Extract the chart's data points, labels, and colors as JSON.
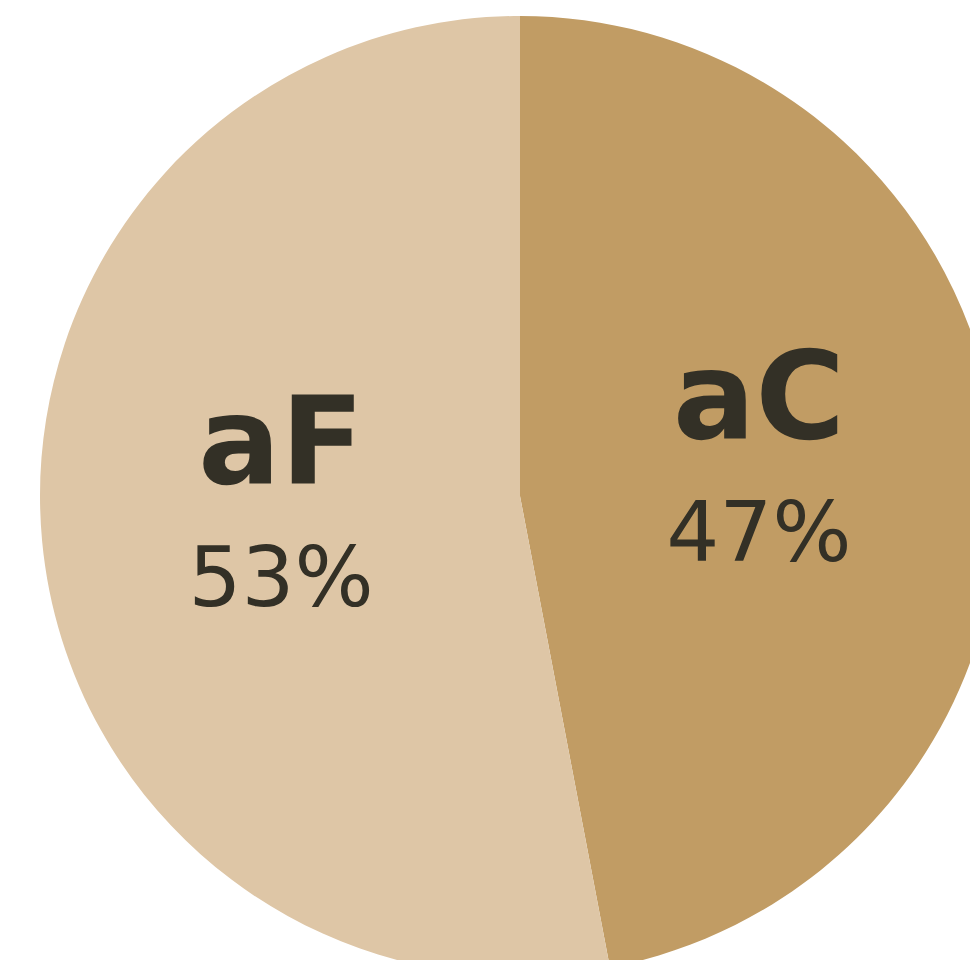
{
  "chart_data": {
    "type": "pie",
    "categories": [
      "aC",
      "aF"
    ],
    "values": [
      47,
      53
    ],
    "colors": [
      "#c19c64",
      "#dec6a6"
    ],
    "value_labels": [
      "47%",
      "53%"
    ]
  }
}
